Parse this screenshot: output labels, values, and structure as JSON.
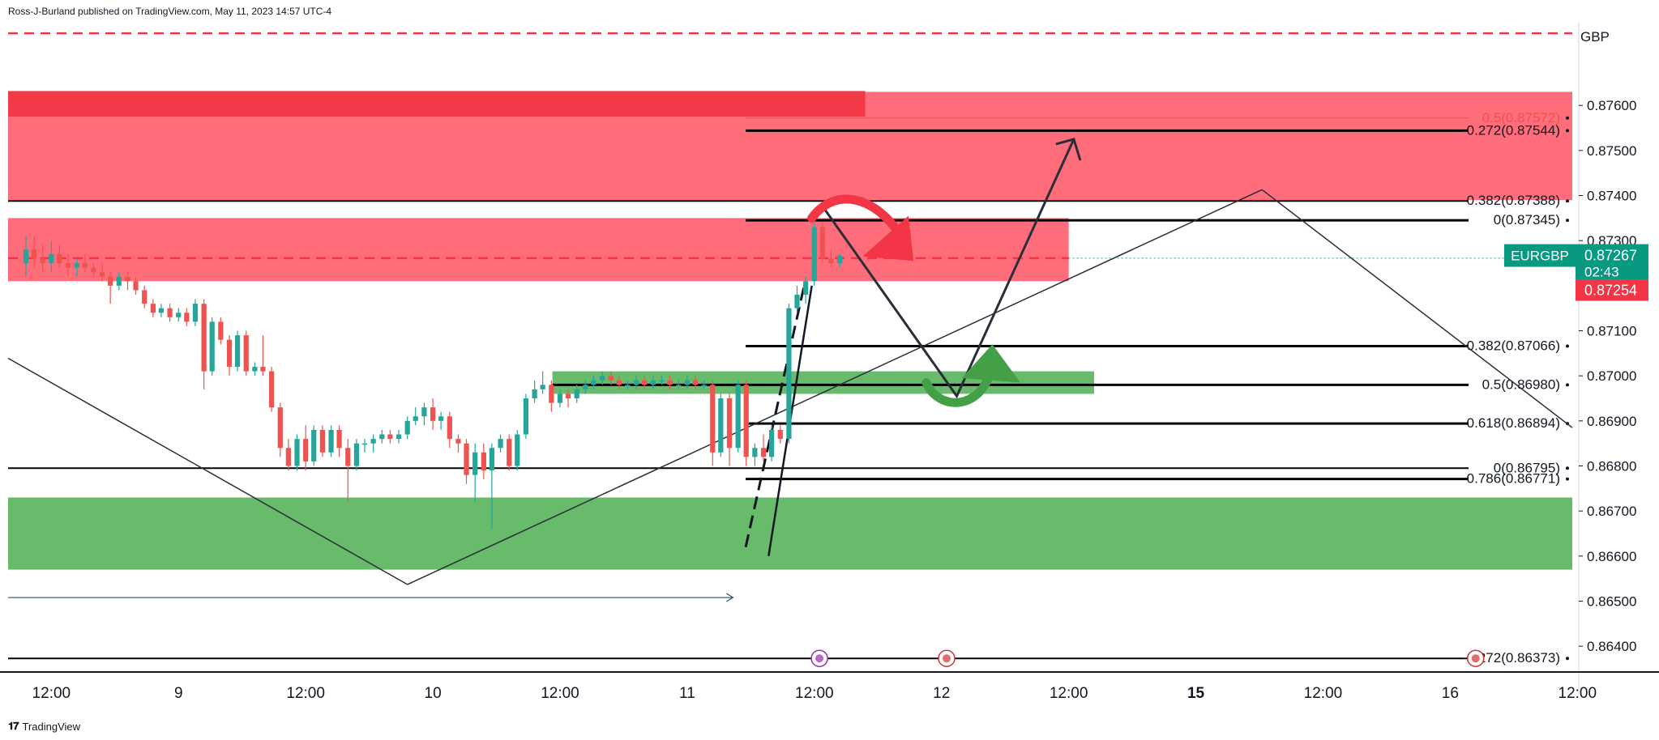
{
  "header": {
    "published": "Ross-J-Burland published on TradingView.com, May 11, 2023 14:57 UTC-4"
  },
  "footer": {
    "brand": "TradingView",
    "logo": "tradingview-logo"
  },
  "currency_label": "GBP",
  "colors": {
    "bull": "#26a69a",
    "bear": "#ef5350",
    "resistance_zone": "#ff5c6c",
    "support_zone": "#4caf50",
    "dashed_red": "#f23645",
    "line": "#131722",
    "arrow": "#2a2e39",
    "symbol_badge": "#089981",
    "bid_badge": "#f23645"
  },
  "chart_data": {
    "type": "candlestick",
    "symbol": "EURGBP",
    "last_price": "0.87267",
    "countdown": "02:43",
    "bid_price": "0.87254",
    "ylim": [
      0.8635,
      0.8778
    ],
    "xlim": [
      -0.35,
      30.4
    ],
    "y_ticks": [
      "0.87600",
      "0.87500",
      "0.87400",
      "0.87300",
      "0.87100",
      "0.87000",
      "0.86900",
      "0.86800",
      "0.86700",
      "0.86600",
      "0.86500",
      "0.86400"
    ],
    "x_ticks": [
      {
        "x": 0.5,
        "label": "12:00"
      },
      {
        "x": 3,
        "label": "9"
      },
      {
        "x": 5.5,
        "label": "12:00"
      },
      {
        "x": 8,
        "label": "10"
      },
      {
        "x": 10.5,
        "label": "12:00"
      },
      {
        "x": 13,
        "label": "11"
      },
      {
        "x": 15.5,
        "label": "12:00"
      },
      {
        "x": 18,
        "label": "12"
      },
      {
        "x": 20.5,
        "label": "12:00"
      },
      {
        "x": 23,
        "label": "15",
        "bold": true
      },
      {
        "x": 25.5,
        "label": "12:00"
      },
      {
        "x": 28,
        "label": "16"
      },
      {
        "x": 30.5,
        "label": "12:00"
      }
    ],
    "candles": [
      [
        0.0,
        0.8725,
        0.8731,
        0.8722,
        0.8728
      ],
      [
        0.16,
        0.8728,
        0.8731,
        0.8724,
        0.8726
      ],
      [
        0.33,
        0.8726,
        0.8729,
        0.8723,
        0.8725
      ],
      [
        0.5,
        0.8725,
        0.873,
        0.8723,
        0.8727
      ],
      [
        0.66,
        0.8727,
        0.8729,
        0.8724,
        0.8725
      ],
      [
        0.83,
        0.8725,
        0.8727,
        0.8722,
        0.8724
      ],
      [
        1.0,
        0.8724,
        0.8726,
        0.8722,
        0.8725
      ],
      [
        1.16,
        0.8725,
        0.8727,
        0.8723,
        0.8724
      ],
      [
        1.33,
        0.8724,
        0.8725,
        0.8722,
        0.8723
      ],
      [
        1.5,
        0.8723,
        0.8725,
        0.8721,
        0.8722
      ],
      [
        1.66,
        0.8722,
        0.8723,
        0.8716,
        0.872
      ],
      [
        1.83,
        0.872,
        0.8723,
        0.8719,
        0.8722
      ],
      [
        2.0,
        0.8722,
        0.8723,
        0.8719,
        0.8721
      ],
      [
        2.16,
        0.8721,
        0.8722,
        0.8718,
        0.8719
      ],
      [
        2.33,
        0.8719,
        0.872,
        0.8715,
        0.8716
      ],
      [
        2.5,
        0.8716,
        0.8717,
        0.8713,
        0.8714
      ],
      [
        2.66,
        0.8714,
        0.8716,
        0.8713,
        0.8715
      ],
      [
        2.83,
        0.8715,
        0.8716,
        0.8712,
        0.8713
      ],
      [
        3.0,
        0.8713,
        0.8715,
        0.8712,
        0.8714
      ],
      [
        3.16,
        0.8714,
        0.8715,
        0.8711,
        0.8712
      ],
      [
        3.33,
        0.8712,
        0.8717,
        0.8711,
        0.8716
      ],
      [
        3.5,
        0.8716,
        0.8717,
        0.8697,
        0.8701
      ],
      [
        3.66,
        0.8701,
        0.8713,
        0.87,
        0.8712
      ],
      [
        3.83,
        0.8712,
        0.8713,
        0.8707,
        0.8708
      ],
      [
        4.0,
        0.8708,
        0.8709,
        0.87,
        0.8702
      ],
      [
        4.16,
        0.8702,
        0.871,
        0.8701,
        0.8709
      ],
      [
        4.33,
        0.8709,
        0.871,
        0.87,
        0.8701
      ],
      [
        4.5,
        0.8701,
        0.8703,
        0.87,
        0.8702
      ],
      [
        4.66,
        0.8702,
        0.8709,
        0.87,
        0.8701
      ],
      [
        4.83,
        0.8701,
        0.8702,
        0.8692,
        0.8693
      ],
      [
        5.0,
        0.8693,
        0.8694,
        0.8682,
        0.8684
      ],
      [
        5.16,
        0.8684,
        0.8686,
        0.8679,
        0.868
      ],
      [
        5.33,
        0.868,
        0.8687,
        0.8679,
        0.8686
      ],
      [
        5.5,
        0.8686,
        0.8689,
        0.8679,
        0.8681
      ],
      [
        5.66,
        0.8681,
        0.8689,
        0.868,
        0.8688
      ],
      [
        5.83,
        0.8688,
        0.8689,
        0.8682,
        0.8683
      ],
      [
        6.0,
        0.8683,
        0.8689,
        0.8682,
        0.8688
      ],
      [
        6.16,
        0.8688,
        0.8689,
        0.8682,
        0.8684
      ],
      [
        6.33,
        0.8684,
        0.8686,
        0.8672,
        0.868
      ],
      [
        6.5,
        0.868,
        0.8686,
        0.8679,
        0.8685
      ],
      [
        6.66,
        0.8685,
        0.8686,
        0.8683,
        0.8685
      ],
      [
        6.83,
        0.8685,
        0.8687,
        0.8683,
        0.8686
      ],
      [
        7.0,
        0.8686,
        0.8688,
        0.8685,
        0.8687
      ],
      [
        7.16,
        0.8687,
        0.8688,
        0.8685,
        0.8686
      ],
      [
        7.33,
        0.8686,
        0.8688,
        0.8685,
        0.8687
      ],
      [
        7.5,
        0.8687,
        0.8691,
        0.8686,
        0.869
      ],
      [
        7.66,
        0.869,
        0.8693,
        0.8689,
        0.8691
      ],
      [
        7.83,
        0.8691,
        0.8694,
        0.8689,
        0.8693
      ],
      [
        8.0,
        0.8693,
        0.8695,
        0.8688,
        0.869
      ],
      [
        8.16,
        0.869,
        0.8692,
        0.8688,
        0.8691
      ],
      [
        8.33,
        0.8691,
        0.8692,
        0.8684,
        0.8686
      ],
      [
        8.5,
        0.8686,
        0.8687,
        0.8683,
        0.8685
      ],
      [
        8.66,
        0.8685,
        0.8686,
        0.8676,
        0.8678
      ],
      [
        8.83,
        0.8678,
        0.8685,
        0.8672,
        0.8683
      ],
      [
        9.0,
        0.8683,
        0.8685,
        0.8677,
        0.8679
      ],
      [
        9.16,
        0.8679,
        0.8685,
        0.8666,
        0.8684
      ],
      [
        9.33,
        0.8684,
        0.8687,
        0.8683,
        0.8686
      ],
      [
        9.5,
        0.8686,
        0.8687,
        0.8679,
        0.868
      ],
      [
        9.66,
        0.868,
        0.8688,
        0.8679,
        0.8687
      ],
      [
        9.83,
        0.8687,
        0.8696,
        0.8686,
        0.8695
      ],
      [
        10.0,
        0.8695,
        0.8699,
        0.8694,
        0.8697
      ],
      [
        10.16,
        0.8697,
        0.8701,
        0.8696,
        0.8698
      ],
      [
        10.33,
        0.8698,
        0.8699,
        0.8692,
        0.8694
      ],
      [
        10.5,
        0.8694,
        0.8697,
        0.8693,
        0.8696
      ],
      [
        10.66,
        0.8696,
        0.8697,
        0.8693,
        0.8695
      ],
      [
        10.83,
        0.8695,
        0.8698,
        0.8694,
        0.8697
      ],
      [
        11.0,
        0.8697,
        0.8699,
        0.8696,
        0.8698
      ],
      [
        11.16,
        0.8698,
        0.87,
        0.8697,
        0.8699
      ],
      [
        11.33,
        0.8699,
        0.8701,
        0.8698,
        0.87
      ],
      [
        11.5,
        0.87,
        0.8701,
        0.8698,
        0.8699
      ],
      [
        11.66,
        0.8699,
        0.87,
        0.8697,
        0.8698
      ],
      [
        11.83,
        0.8698,
        0.8699,
        0.8697,
        0.8698
      ],
      [
        12.0,
        0.8698,
        0.87,
        0.8697,
        0.8699
      ],
      [
        12.16,
        0.8699,
        0.87,
        0.8697,
        0.8698
      ],
      [
        12.33,
        0.8698,
        0.87,
        0.8697,
        0.8699
      ],
      [
        12.5,
        0.8699,
        0.87,
        0.8698,
        0.8699
      ],
      [
        12.66,
        0.8699,
        0.87,
        0.8697,
        0.8698
      ],
      [
        12.83,
        0.8698,
        0.8699,
        0.8697,
        0.8698
      ],
      [
        13.0,
        0.8698,
        0.87,
        0.8697,
        0.8699
      ],
      [
        13.16,
        0.8699,
        0.87,
        0.8697,
        0.8698
      ],
      [
        13.33,
        0.8698,
        0.8699,
        0.8697,
        0.8698
      ],
      [
        13.5,
        0.8698,
        0.8699,
        0.868,
        0.8683
      ],
      [
        13.66,
        0.8683,
        0.8696,
        0.8682,
        0.8695
      ],
      [
        13.83,
        0.8695,
        0.8696,
        0.868,
        0.8684
      ],
      [
        14.0,
        0.8684,
        0.8699,
        0.8683,
        0.8698
      ],
      [
        14.16,
        0.8698,
        0.8699,
        0.868,
        0.8682
      ],
      [
        14.33,
        0.8682,
        0.8685,
        0.868,
        0.8684
      ],
      [
        14.5,
        0.8684,
        0.8687,
        0.8681,
        0.8682
      ],
      [
        14.66,
        0.8682,
        0.8689,
        0.8681,
        0.8688
      ],
      [
        14.83,
        0.8688,
        0.8689,
        0.8685,
        0.8686
      ],
      [
        15.0,
        0.8686,
        0.8716,
        0.8685,
        0.8715
      ],
      [
        15.16,
        0.8715,
        0.872,
        0.8714,
        0.8718
      ],
      [
        15.33,
        0.8718,
        0.8722,
        0.8716,
        0.8721
      ],
      [
        15.5,
        0.8721,
        0.8734,
        0.872,
        0.8733
      ],
      [
        15.66,
        0.8733,
        0.8734,
        0.8725,
        0.8726
      ],
      [
        15.83,
        0.8726,
        0.8728,
        0.8724,
        0.8725
      ],
      [
        16.0,
        0.8725,
        0.8727,
        0.8724,
        0.87267
      ]
    ],
    "zones": [
      {
        "name": "upper-resistance-zone",
        "x1": -0.35,
        "x2": 30.4,
        "y1": 0.8763,
        "y2": 0.8739,
        "kind": "resistance"
      },
      {
        "name": "upper-resistance-band",
        "x1": -0.35,
        "x2": 16.5,
        "y1": 0.87632,
        "y2": 0.87575,
        "kind": "resistance-dark"
      },
      {
        "name": "mid-resistance-zone",
        "x1": -0.35,
        "x2": 20.5,
        "y1": 0.8735,
        "y2": 0.8721,
        "kind": "resistance"
      },
      {
        "name": "mid-support-zone",
        "x1": 10.35,
        "x2": 21.0,
        "y1": 0.8701,
        "y2": 0.8696,
        "kind": "support"
      },
      {
        "name": "lower-support-zone",
        "x1": -0.35,
        "x2": 30.4,
        "y1": 0.8673,
        "y2": 0.8657,
        "kind": "support"
      }
    ],
    "fib_lines": [
      {
        "label": "0.5(0.87572)",
        "price": 0.87572,
        "x1": 14.15,
        "color": "#ef5350",
        "width": 1
      },
      {
        "label": "-0.272(0.87544)",
        "price": 0.87544,
        "x1": 14.15,
        "color": "#000000",
        "width": 3
      },
      {
        "label": "0.382(0.87388)",
        "price": 0.87388,
        "x1": -0.35,
        "color": "#000000",
        "width": 2
      },
      {
        "label": "0(0.87345)",
        "price": 0.87345,
        "x1": 14.15,
        "color": "#000000",
        "width": 3
      },
      {
        "label": "0.382(0.87066)",
        "price": 0.87066,
        "x1": 14.15,
        "color": "#000000",
        "width": 3
      },
      {
        "label": "0.5(0.86980)",
        "price": 0.8698,
        "x1": 10.35,
        "color": "#000000",
        "width": 3
      },
      {
        "label": "0.618(0.86894)",
        "price": 0.86894,
        "x1": 14.15,
        "color": "#000000",
        "width": 3
      },
      {
        "label": "0(0.86795)",
        "price": 0.86795,
        "x1": -0.35,
        "color": "#000000",
        "width": 2
      },
      {
        "label": "0.786(0.86771)",
        "price": 0.86771,
        "x1": 14.15,
        "color": "#000000",
        "width": 3
      },
      {
        "label": "-0.272(0.86373)",
        "price": 0.86373,
        "x1": -0.35,
        "color": "#000000",
        "width": 2
      }
    ],
    "dashed_levels": [
      0.8776,
      0.87261
    ]
  }
}
